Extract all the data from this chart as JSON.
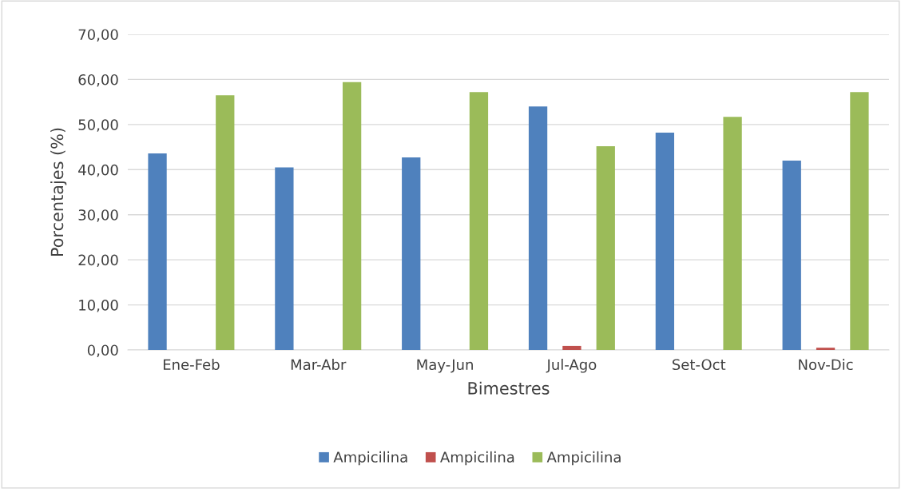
{
  "chart_data": {
    "type": "bar",
    "xlabel": "Bimestres",
    "ylabel": "Porcentajes (%)",
    "categories": [
      "Ene-Feb",
      "Mar-Abr",
      "May-Jun",
      "Jul-Ago",
      "Set-Oct",
      "Nov-Dic"
    ],
    "series": [
      {
        "name": "Ampicilina",
        "color": "#4f81bd",
        "values": [
          43.6,
          40.5,
          42.7,
          54.0,
          48.2,
          42.0
        ]
      },
      {
        "name": "Ampicilina",
        "color": "#c0504d",
        "values": [
          0,
          0,
          0,
          0.9,
          0,
          0.5
        ]
      },
      {
        "name": "Ampicilina",
        "color": "#9bbb59",
        "values": [
          56.5,
          59.4,
          57.2,
          45.2,
          51.7,
          57.2
        ]
      }
    ],
    "ylim": [
      0,
      70
    ],
    "yticks": [
      {
        "value": 0,
        "label": "0,00"
      },
      {
        "value": 10,
        "label": "10,00"
      },
      {
        "value": 20,
        "label": "20,00"
      },
      {
        "value": 30,
        "label": "30,00"
      },
      {
        "value": 40,
        "label": "40,00"
      },
      {
        "value": 50,
        "label": "50,00"
      },
      {
        "value": 60,
        "label": "60,00"
      },
      {
        "value": 70,
        "label": "70,00"
      }
    ],
    "grid": "y",
    "legend": "bottom"
  }
}
